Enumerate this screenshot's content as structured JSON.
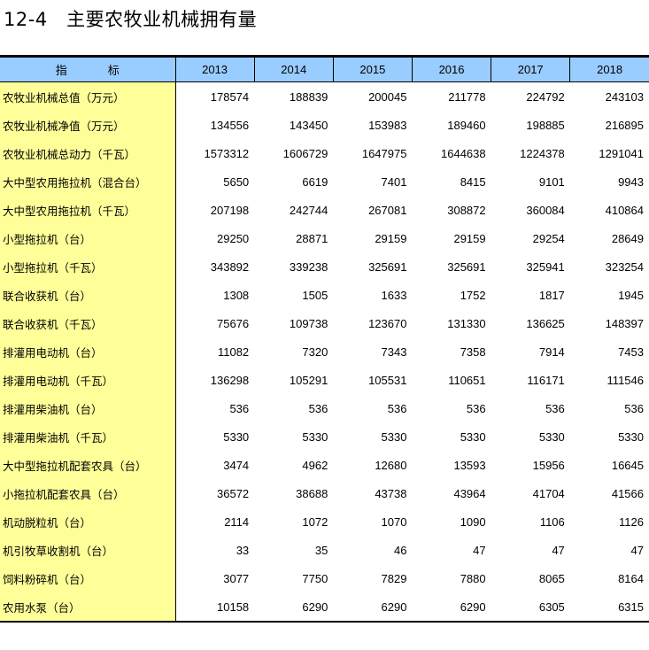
{
  "title": "12-4   主要农牧业机械拥有量",
  "colors": {
    "header_bg": "#99ccff",
    "label_bg": "#ffff99"
  },
  "table": {
    "header_label": [
      "指",
      "标"
    ],
    "years": [
      "2013",
      "2014",
      "2015",
      "2016",
      "2017",
      "2018"
    ],
    "rows": [
      {
        "label": "农牧业机械总值（万元）",
        "values": [
          "178574",
          "188839",
          "200045",
          "211778",
          "224792",
          "243103"
        ]
      },
      {
        "label": "农牧业机械净值（万元）",
        "values": [
          "134556",
          "143450",
          "153983",
          "189460",
          "198885",
          "216895"
        ]
      },
      {
        "label": "农牧业机械总动力（千瓦）",
        "values": [
          "1573312",
          "1606729",
          "1647975",
          "1644638",
          "1224378",
          "1291041"
        ]
      },
      {
        "label": "大中型农用拖拉机（混合台）",
        "values": [
          "5650",
          "6619",
          "7401",
          "8415",
          "9101",
          "9943"
        ]
      },
      {
        "label": "大中型农用拖拉机（千瓦）",
        "values": [
          "207198",
          "242744",
          "267081",
          "308872",
          "360084",
          "410864"
        ]
      },
      {
        "label": "小型拖拉机（台）",
        "values": [
          "29250",
          "28871",
          "29159",
          "29159",
          "29254",
          "28649"
        ]
      },
      {
        "label": "小型拖拉机（千瓦）",
        "values": [
          "343892",
          "339238",
          "325691",
          "325691",
          "325941",
          "323254"
        ]
      },
      {
        "label": "联合收获机（台）",
        "values": [
          "1308",
          "1505",
          "1633",
          "1752",
          "1817",
          "1945"
        ]
      },
      {
        "label": "联合收获机（千瓦）",
        "values": [
          "75676",
          "109738",
          "123670",
          "131330",
          "136625",
          "148397"
        ]
      },
      {
        "label": "排灌用电动机（台）",
        "values": [
          "11082",
          "7320",
          "7343",
          "7358",
          "7914",
          "7453"
        ]
      },
      {
        "label": "排灌用电动机（千瓦）",
        "values": [
          "136298",
          "105291",
          "105531",
          "110651",
          "116171",
          "111546"
        ]
      },
      {
        "label": "排灌用柴油机（台）",
        "values": [
          "536",
          "536",
          "536",
          "536",
          "536",
          "536"
        ]
      },
      {
        "label": "排灌用柴油机（千瓦）",
        "values": [
          "5330",
          "5330",
          "5330",
          "5330",
          "5330",
          "5330"
        ]
      },
      {
        "label": "大中型拖拉机配套农具（台）",
        "values": [
          "3474",
          "4962",
          "12680",
          "13593",
          "15956",
          "16645"
        ]
      },
      {
        "label": "小拖拉机配套农具（台）",
        "values": [
          "36572",
          "38688",
          "43738",
          "43964",
          "41704",
          "41566"
        ]
      },
      {
        "label": "机动脱粒机（台）",
        "values": [
          "2114",
          "1072",
          "1070",
          "1090",
          "1106",
          "1126"
        ]
      },
      {
        "label": "机引牧草收割机（台）",
        "values": [
          "33",
          "35",
          "46",
          "47",
          "47",
          "47"
        ]
      },
      {
        "label": "饲料粉碎机（台）",
        "values": [
          "3077",
          "7750",
          "7829",
          "7880",
          "8065",
          "8164"
        ]
      },
      {
        "label": "农用水泵（台）",
        "values": [
          "10158",
          "6290",
          "6290",
          "6290",
          "6305",
          "6315"
        ]
      }
    ]
  }
}
